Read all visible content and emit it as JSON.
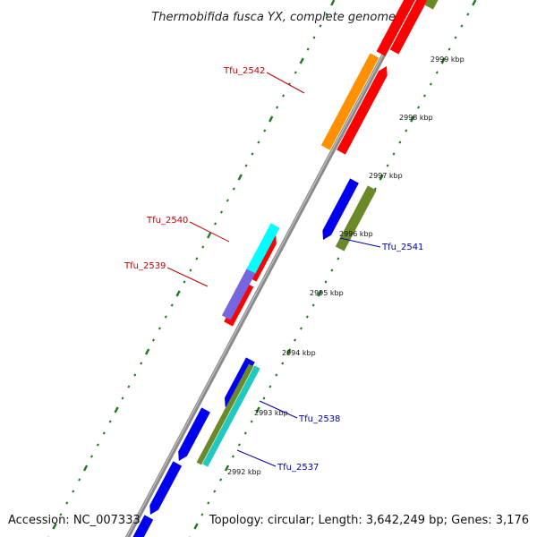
{
  "title": "Thermobifida fusca YX, complete genome",
  "footer": {
    "accession": "Accession: NC_007333",
    "summary": "Topology: circular; Length: 3,642,249 bp; Genes: 3,176"
  },
  "colors": {
    "backbone": "#8a8a8a",
    "tick": "#1e7a1e",
    "label_forward": "#c00000",
    "label_reverse": "#0000aa",
    "red": "#ff0000",
    "orange": "#ff9000",
    "blue": "#0000ee",
    "olive": "#6a8a2a",
    "cyan": "#00ffff",
    "purple": "#7766dd",
    "teal": "#20c8c0"
  },
  "scale_labels": [
    "2999 kbp",
    "2998 kbp",
    "2997 kbp",
    "2996 kbp",
    "2995 kbp",
    "2994 kbp",
    "2993 kbp",
    "2992 kbp"
  ],
  "gene_labels": [
    {
      "text": "Tfu_2542",
      "strand": "forward"
    },
    {
      "text": "Tfu_2540",
      "strand": "forward"
    },
    {
      "text": "Tfu_2539",
      "strand": "forward"
    },
    {
      "text": "Tfu_2541",
      "strand": "reverse"
    },
    {
      "text": "Tfu_2538",
      "strand": "reverse"
    },
    {
      "text": "Tfu_2537",
      "strand": "reverse"
    }
  ]
}
